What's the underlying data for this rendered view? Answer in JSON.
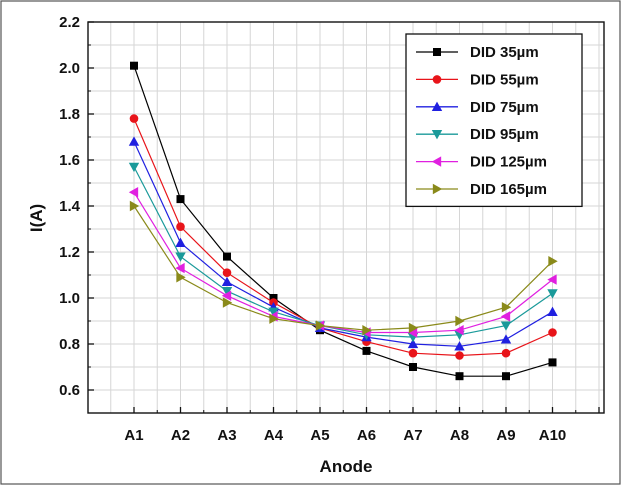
{
  "chart_data": {
    "type": "line",
    "title": "",
    "xlabel": "Anode",
    "ylabel": "I(A)",
    "categories": [
      "A1",
      "A2",
      "A3",
      "A4",
      "A5",
      "A6",
      "A7",
      "A8",
      "A9",
      "A10"
    ],
    "ylim": [
      0.5,
      2.2
    ],
    "yticks": [
      0.6,
      0.8,
      1.0,
      1.2,
      1.4,
      1.6,
      1.8,
      2.0,
      2.2
    ],
    "ytick_labels": [
      "0.6",
      "0.8",
      "1.0",
      "1.2",
      "1.4",
      "1.6",
      "1.8",
      "2.0",
      "2.2"
    ],
    "grid": true,
    "legend_position": "top-right",
    "series": [
      {
        "name": "DID 35µm",
        "color": "#000000",
        "marker": "square",
        "values": [
          2.01,
          1.43,
          1.18,
          1.0,
          0.86,
          0.77,
          0.7,
          0.66,
          0.66,
          0.72
        ]
      },
      {
        "name": "DID 55µm",
        "color": "#e8141a",
        "marker": "circle",
        "values": [
          1.78,
          1.31,
          1.11,
          0.98,
          0.87,
          0.81,
          0.76,
          0.75,
          0.76,
          0.85
        ]
      },
      {
        "name": "DID 75µm",
        "color": "#2020e0",
        "marker": "triangle-up",
        "values": [
          1.68,
          1.24,
          1.07,
          0.96,
          0.87,
          0.83,
          0.8,
          0.79,
          0.82,
          0.94
        ]
      },
      {
        "name": "DID 95µm",
        "color": "#1a9a9a",
        "marker": "triangle-down",
        "values": [
          1.57,
          1.18,
          1.03,
          0.94,
          0.88,
          0.84,
          0.83,
          0.84,
          0.88,
          1.02
        ]
      },
      {
        "name": "DID 125µm",
        "color": "#e020e0",
        "marker": "triangle-left",
        "values": [
          1.46,
          1.13,
          1.01,
          0.92,
          0.88,
          0.85,
          0.85,
          0.86,
          0.92,
          1.08
        ]
      },
      {
        "name": "DID 165µm",
        "color": "#8a8a1a",
        "marker": "triangle-right",
        "values": [
          1.4,
          1.09,
          0.98,
          0.91,
          0.88,
          0.86,
          0.87,
          0.9,
          0.96,
          1.16
        ]
      }
    ]
  }
}
